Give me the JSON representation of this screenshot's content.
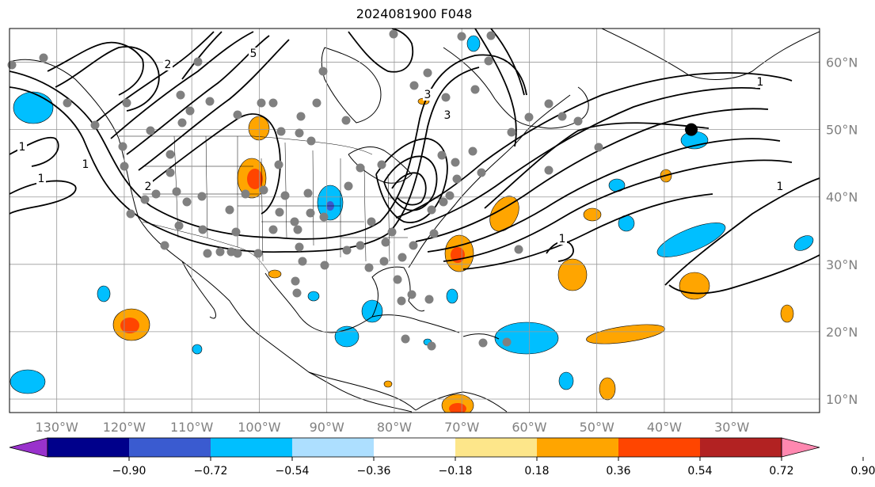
{
  "title": "2024081900 F048",
  "map": {
    "lon_labels": [
      "130°W",
      "120°W",
      "110°W",
      "100°W",
      "90°W",
      "80°W",
      "70°W",
      "60°W",
      "50°W",
      "40°W",
      "30°W"
    ],
    "lat_labels": [
      "10°N",
      "20°N",
      "30°N",
      "40°N",
      "50°N",
      "60°N"
    ],
    "lon_values": [
      -130,
      -120,
      -110,
      -100,
      -90,
      -80,
      -70,
      -60,
      -50,
      -40,
      -30
    ],
    "lat_values": [
      10,
      20,
      30,
      40,
      50,
      60
    ],
    "extent": {
      "lon_min": -137,
      "lon_max": -17,
      "lat_min": 8,
      "lat_max": 65
    },
    "contour_labels": [
      "1",
      "1",
      "2",
      "3",
      "5",
      "1",
      "1",
      "1",
      "3",
      "2",
      "1"
    ],
    "marker": {
      "lon": -36,
      "lat": 50
    },
    "colors": {
      "land_line": "#000000",
      "grid": "#999999",
      "station": "#808080",
      "label": "#808080"
    }
  },
  "colorbar": {
    "tick_labels": [
      "−0.90",
      "−0.72",
      "−0.54",
      "−0.36",
      "−0.18",
      "0.18",
      "0.36",
      "0.54",
      "0.72",
      "0.90"
    ],
    "bins": [
      {
        "color": "#9932CC"
      },
      {
        "color": "#00008B"
      },
      {
        "color": "#3A5BD0"
      },
      {
        "color": "#00BFFF"
      },
      {
        "color": "#ADDFFF"
      },
      {
        "color": "#FFFFFF"
      },
      {
        "color": "#FDE68A"
      },
      {
        "color": "#FFA500"
      },
      {
        "color": "#FF4500"
      },
      {
        "color": "#B22222"
      },
      {
        "color": "#FF88B0"
      }
    ]
  }
}
